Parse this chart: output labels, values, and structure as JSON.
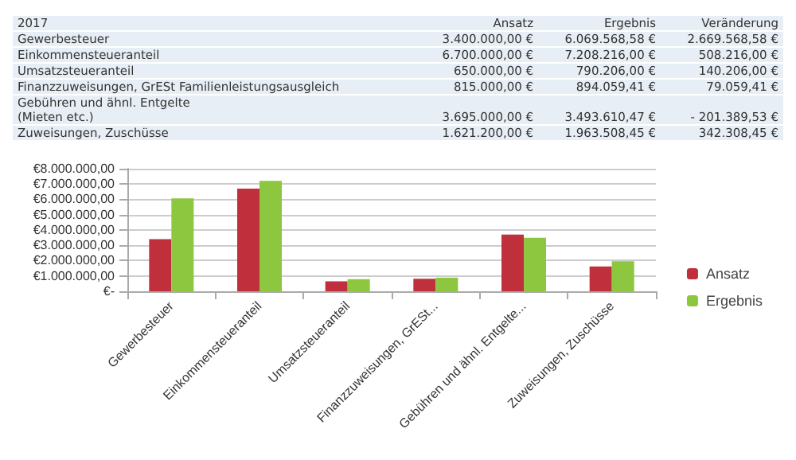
{
  "chart_data": [
    {
      "type": "other",
      "title": "2017",
      "annotations": [
        "Ansatz",
        "Ergebnis",
        "Veränderung",
        "Gewerbesteuer",
        "3.400.000,00 €",
        "6.069.568,58 €",
        "2.669.568,58 €",
        "Einkommensteueranteil",
        "6.700.000,00 €",
        "7.208.216,00 €",
        "508.216,00 €",
        "Umsatzsteueranteil",
        "650.000,00 €",
        "790.206,00 €",
        "140.206,00 €",
        "Finanzzuweisungen, GrESt Familienleistungsausgleich",
        "815.000,00 €",
        "894.059,41 €",
        "79.059,41 €",
        "Gebühren und ähnl. Entgelte\n(Mieten etc.)",
        "3.695.000,00 €",
        "3.493.610,47 €",
        "-   201.389,53 €",
        "Zuweisungen, Zuschüsse",
        "1.621.200,00 €",
        "1.963.508,45 €",
        "342.308,45 €"
      ]
    },
    {
      "type": "bar",
      "categories": [
        "Gewerbesteuer",
        "Einkommensteueranteil",
        "Umsatzsteueranteil",
        "Finanzzuweisungen, GrESt...",
        "Gebühren und ähnl. Entgelte...",
        "Zuweisungen, Zuschüsse"
      ],
      "series": [
        {
          "name": "Ansatz",
          "color": "#c0303c",
          "values": [
            3400000,
            6700000,
            650000,
            815000,
            3695000,
            1620000
          ]
        },
        {
          "name": "Ergebnis",
          "color": "#8dc63f",
          "values": [
            6070000,
            7210000,
            790000,
            890000,
            3490000,
            1960000
          ]
        }
      ],
      "ylim": [
        0,
        8000000
      ],
      "yticks": [
        {
          "value": 0,
          "label": "€-"
        },
        {
          "value": 1000000,
          "label": "€1.000.000,00"
        },
        {
          "value": 2000000,
          "label": "€2.000.000,00"
        },
        {
          "value": 3000000,
          "label": "€3.000.000,00"
        },
        {
          "value": 4000000,
          "label": "€4.000.000,00"
        },
        {
          "value": 5000000,
          "label": "€5.000.000,00"
        },
        {
          "value": 6000000,
          "label": "€6.000.000,00"
        },
        {
          "value": 7000000,
          "label": "€7.000.000,00"
        },
        {
          "value": 8000000,
          "label": "€8.000.000,00"
        }
      ],
      "grid": true,
      "legend": "right"
    }
  ]
}
